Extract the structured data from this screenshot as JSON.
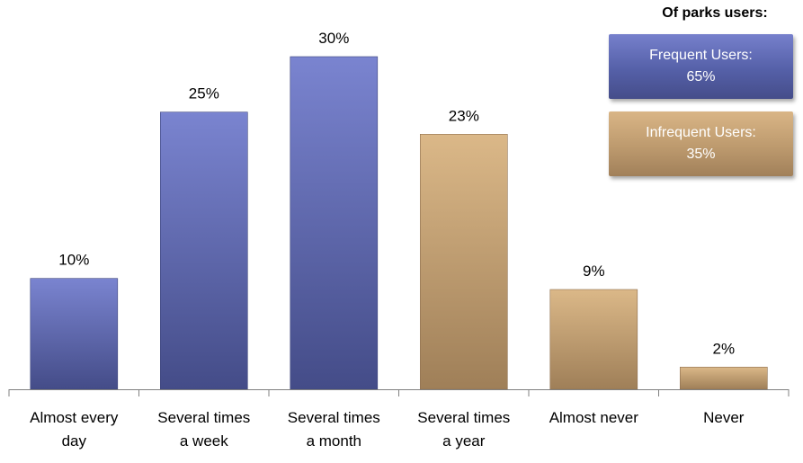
{
  "chart_data": {
    "type": "bar",
    "categories": [
      [
        "Almost every",
        "day"
      ],
      [
        "Several times",
        "a week"
      ],
      [
        "Several times",
        "a month"
      ],
      [
        "Several times",
        "a year"
      ],
      [
        "Almost never"
      ],
      [
        "Never"
      ]
    ],
    "values": [
      10,
      25,
      30,
      23,
      9,
      2
    ],
    "value_labels": [
      "10%",
      "25%",
      "30%",
      "23%",
      "9%",
      "2%"
    ],
    "groups": [
      "frequent",
      "frequent",
      "frequent",
      "infrequent",
      "infrequent",
      "infrequent"
    ],
    "ylim": [
      0,
      30
    ],
    "grid": false
  },
  "legend": {
    "title": "Of parks users:",
    "frequent": {
      "line1": "Frequent Users:",
      "line2": "65%"
    },
    "infrequent": {
      "line1": "Infrequent Users:",
      "line2": "35%"
    }
  },
  "colors": {
    "frequent_top": "#7a84d0",
    "frequent_bottom": "#444c88",
    "infrequent_top": "#dbb888",
    "infrequent_bottom": "#9f7f58",
    "axis": "#808080"
  }
}
